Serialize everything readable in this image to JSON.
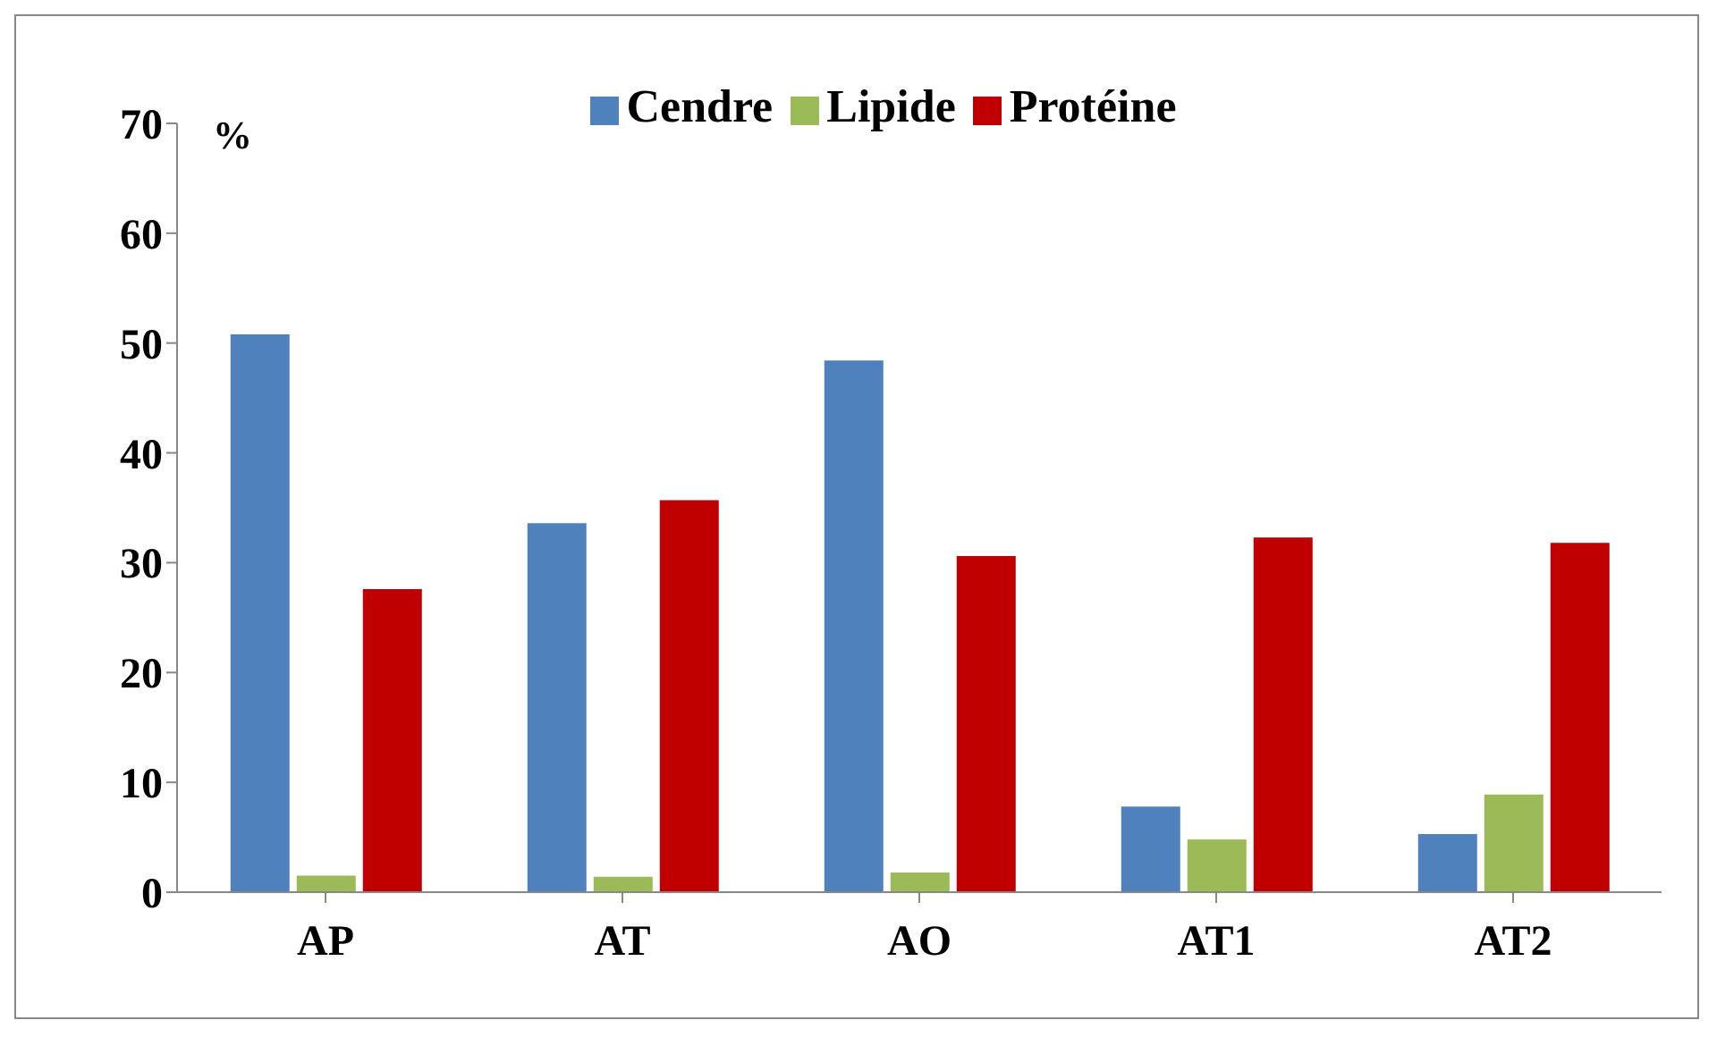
{
  "chart_data": {
    "type": "bar",
    "ylabel": "%",
    "categories": [
      "AP",
      "AT",
      "AO",
      "AT1",
      "AT2"
    ],
    "series": [
      {
        "name": "Cendre",
        "color": "#4f81bd",
        "values": [
          50.8,
          33.6,
          48.4,
          7.8,
          5.3
        ]
      },
      {
        "name": "Lipide",
        "color": "#9bbb59",
        "values": [
          1.5,
          1.4,
          1.8,
          4.8,
          8.9
        ]
      },
      {
        "name": "Protéine",
        "color": "#c00000",
        "values": [
          27.6,
          35.7,
          30.6,
          32.3,
          31.8
        ]
      }
    ],
    "ylim": [
      0,
      70
    ],
    "yticks": [
      0,
      10,
      20,
      30,
      40,
      50,
      60,
      70
    ],
    "grid": false,
    "legend": "top"
  }
}
